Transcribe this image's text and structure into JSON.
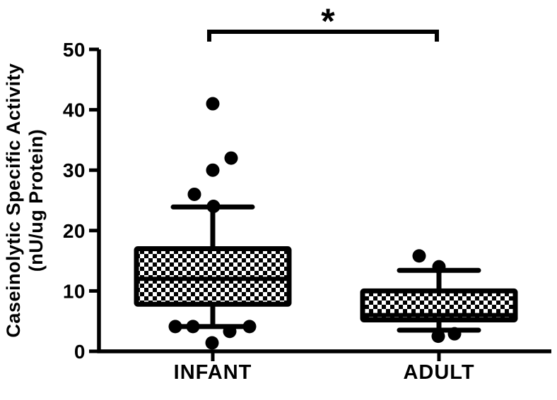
{
  "figure": {
    "background": "#ffffff",
    "ink_color": "#000000",
    "box_fill_style": "checkerboard"
  },
  "chart_data": {
    "type": "boxplot",
    "title": "",
    "xlabel": "",
    "ylabel": "Caseinolytic Specific Activity (nU/ug Protein)",
    "ylabel_lines": [
      "Caseinolytic Specific Activity",
      "(nU/ug Protein)"
    ],
    "ylim": [
      0,
      50
    ],
    "yticks": [
      0,
      10,
      20,
      30,
      40,
      50
    ],
    "grid": false,
    "legend": false,
    "categories": [
      "INFANT",
      "ADULT"
    ],
    "groups": [
      {
        "label": "INFANT",
        "whisker_high": 23.9,
        "q3": 17,
        "median": 12,
        "q1": 7.8,
        "whisker_low": 4.1,
        "points": [
          {
            "value": 41,
            "dx": 0
          },
          {
            "value": 32,
            "dx": 26
          },
          {
            "value": 30,
            "dx": 0
          },
          {
            "value": 26,
            "dx": -26
          },
          {
            "value": 24,
            "dx": 1
          },
          {
            "value": 4.1,
            "dx": -53
          },
          {
            "value": 4.1,
            "dx": -28
          },
          {
            "value": 4.1,
            "dx": 52
          },
          {
            "value": 3.3,
            "dx": 24
          },
          {
            "value": 1.4,
            "dx": -1
          }
        ]
      },
      {
        "label": "ADULT",
        "whisker_high": 13.4,
        "q3": 10,
        "median": 6,
        "q1": 5.2,
        "whisker_low": 3.5,
        "points": [
          {
            "value": 15.8,
            "dx": -28
          },
          {
            "value": 14,
            "dx": 0
          },
          {
            "value": 2.5,
            "dx": -1
          },
          {
            "value": 2.9,
            "dx": 22
          }
        ]
      }
    ],
    "significance": {
      "symbol": "*",
      "between": [
        "INFANT",
        "ADULT"
      ]
    }
  }
}
